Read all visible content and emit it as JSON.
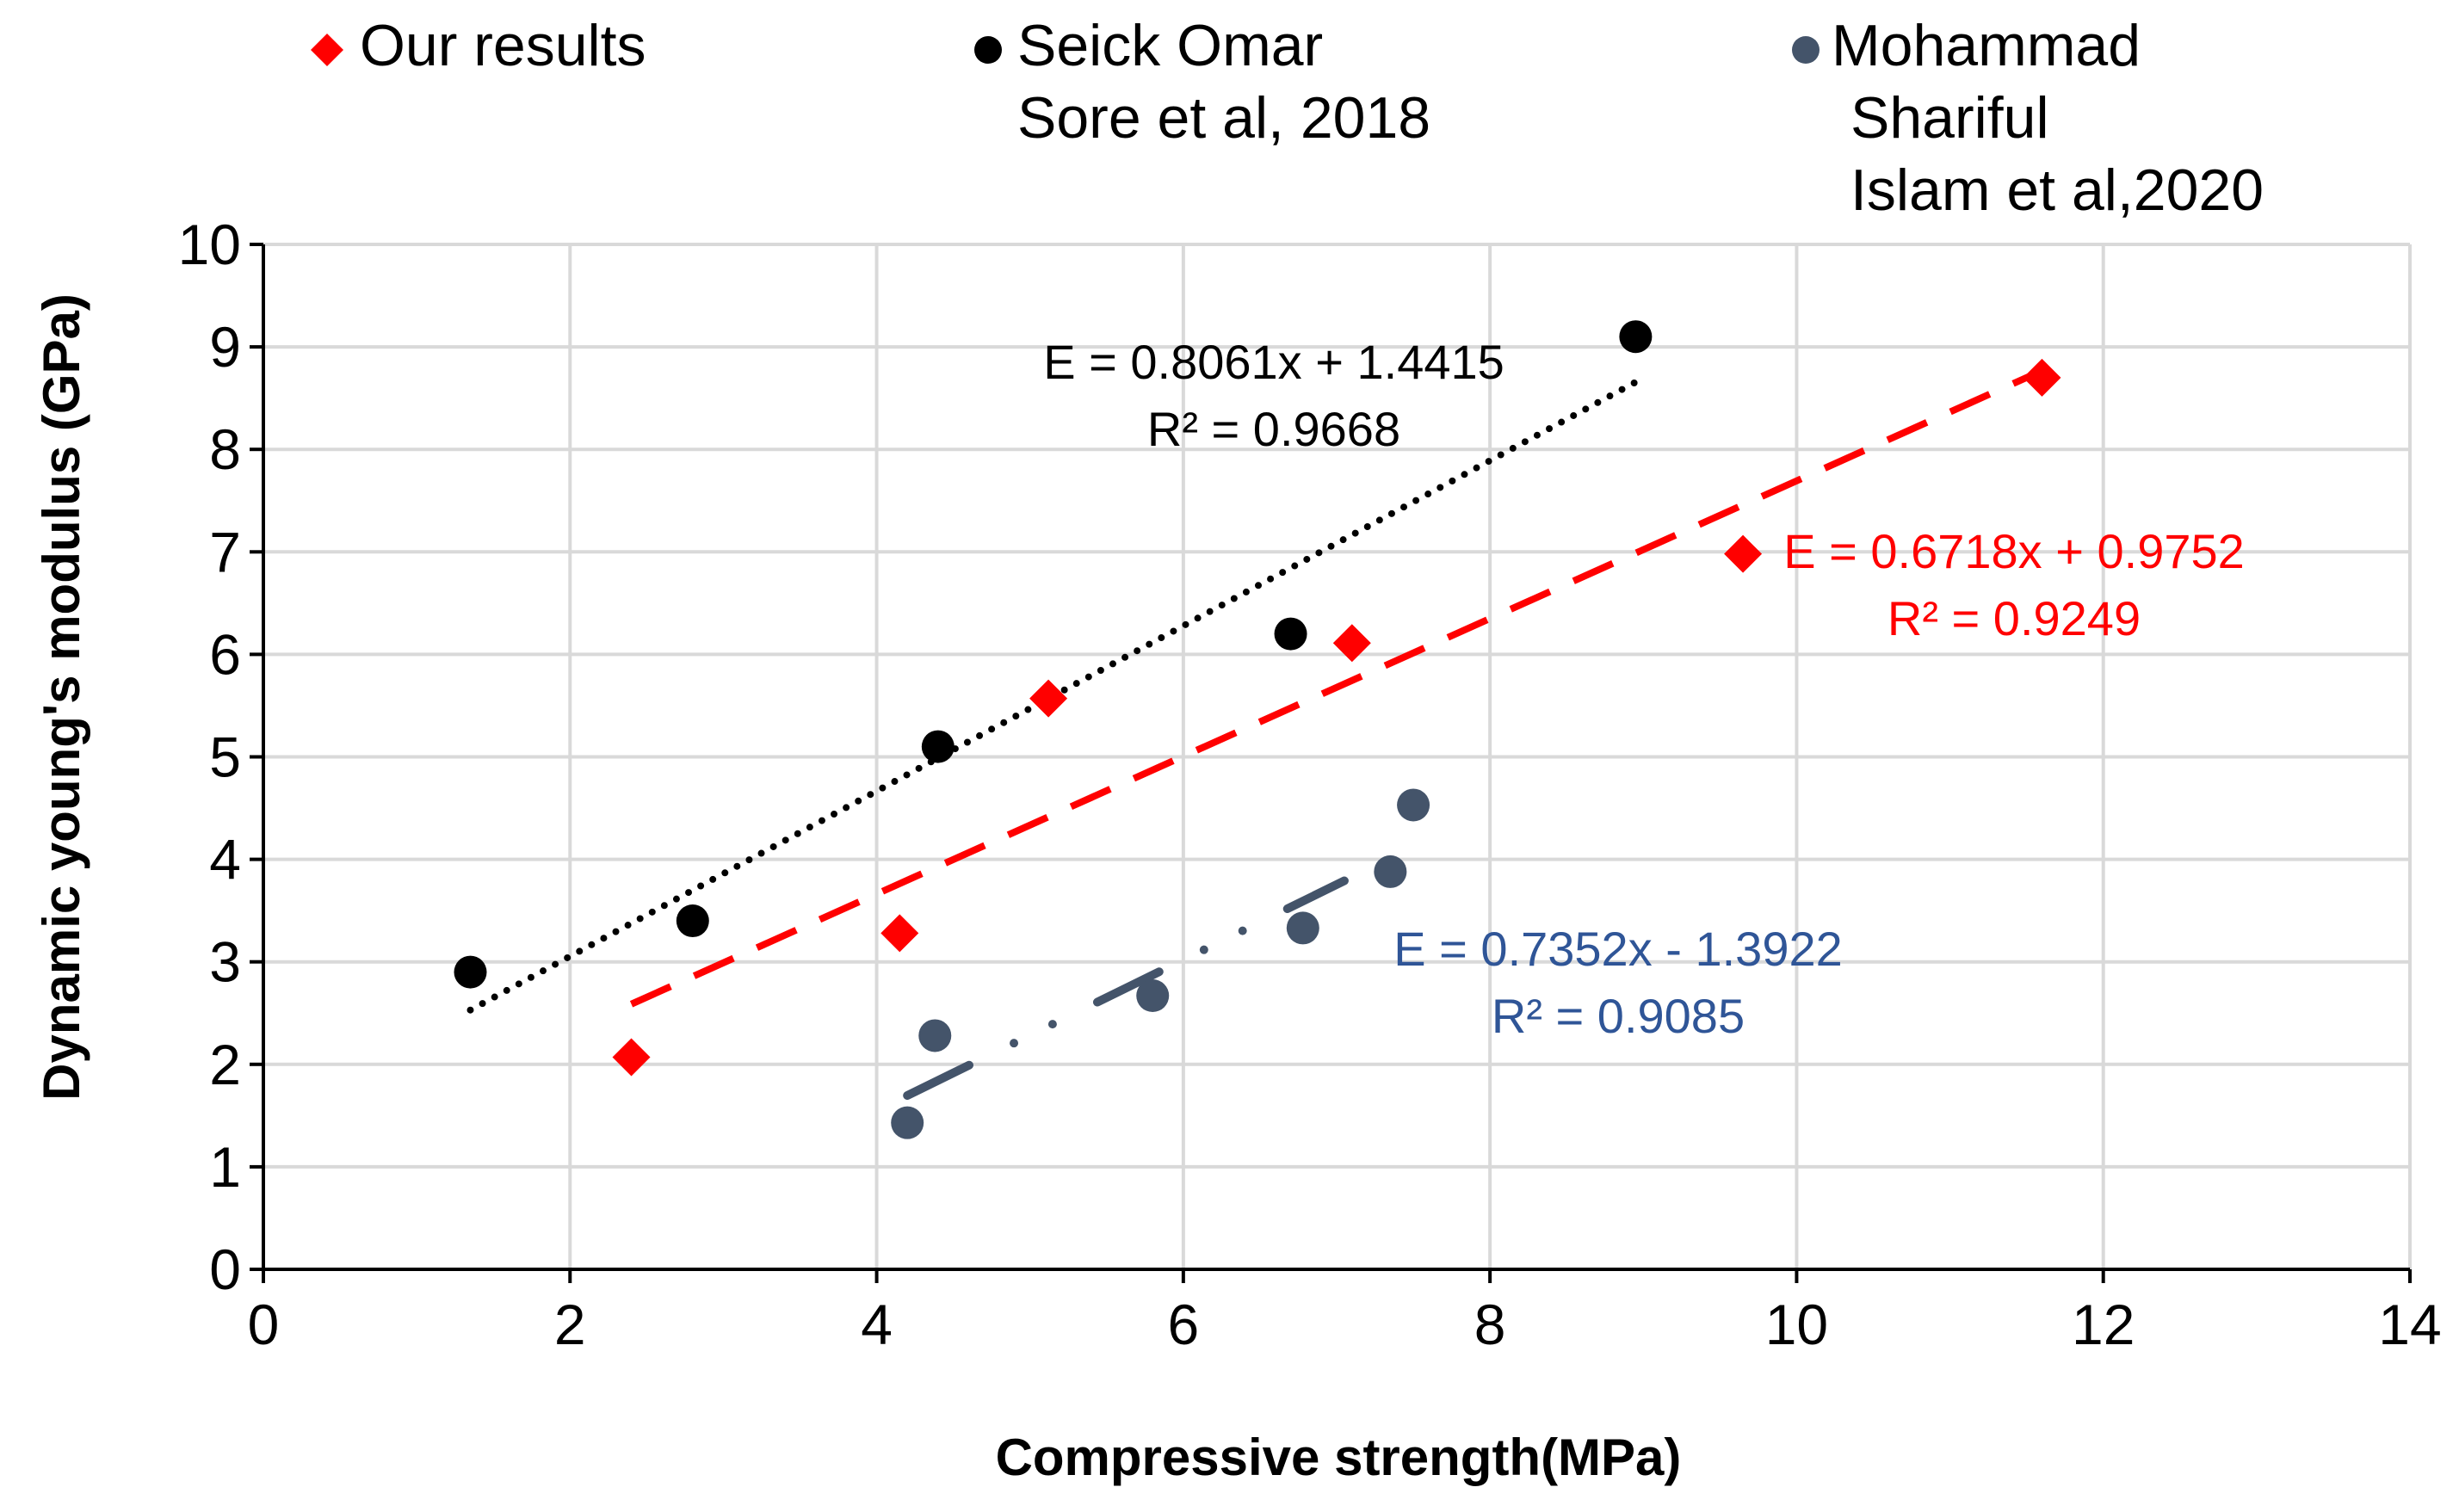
{
  "chart_data": {
    "type": "scatter",
    "title": "",
    "xlabel": "Compressive strength(MPa)",
    "ylabel": "Dynamic young's modulus (GPa)",
    "xlim": [
      0,
      14
    ],
    "ylim": [
      0,
      10
    ],
    "x_ticks": [
      "0",
      "2",
      "4",
      "6",
      "8",
      "10",
      "12",
      "14"
    ],
    "y_ticks": [
      "0",
      "1",
      "2",
      "3",
      "4",
      "5",
      "6",
      "7",
      "8",
      "9",
      "10"
    ],
    "grid": true,
    "legend_position": "top",
    "series": [
      {
        "key": "our-results",
        "legend_lines": [
          "Our results"
        ],
        "marker": "diamond",
        "color": "#ff0000",
        "line_style": "dashed",
        "points": [
          {
            "x": 2.4,
            "y": 2.07
          },
          {
            "x": 4.15,
            "y": 3.28
          },
          {
            "x": 5.12,
            "y": 5.57
          },
          {
            "x": 7.1,
            "y": 6.11
          },
          {
            "x": 9.65,
            "y": 6.98
          },
          {
            "x": 11.6,
            "y": 8.7
          }
        ],
        "trendline": {
          "slope": 0.6718,
          "intercept": 0.9752,
          "x_range": [
            2.4,
            11.6
          ]
        },
        "equation": "E = 0.6718x + 0.9752",
        "r_squared": "R² = 0.9249",
        "label_color": "#ff0000"
      },
      {
        "key": "sore-2018",
        "legend_lines": [
          "Seick Omar",
          "Sore et al, 2018"
        ],
        "marker": "circle",
        "color": "#000000",
        "line_style": "dotted",
        "points": [
          {
            "x": 1.35,
            "y": 2.9
          },
          {
            "x": 2.8,
            "y": 3.4
          },
          {
            "x": 4.4,
            "y": 5.1
          },
          {
            "x": 6.7,
            "y": 6.2
          },
          {
            "x": 8.95,
            "y": 9.1
          }
        ],
        "trendline": {
          "slope": 0.8061,
          "intercept": 1.4415,
          "x_range": [
            1.35,
            8.95
          ]
        },
        "equation": "E = 0.8061x + 1.4415",
        "r_squared": "R² = 0.9668",
        "label_color": "#000000"
      },
      {
        "key": "islam-2020",
        "legend_lines": [
          "Mohammad",
          "Shariful",
          "Islam et al,2020"
        ],
        "marker": "circle",
        "color": "#44546a",
        "line_style": "dash-dot",
        "points": [
          {
            "x": 4.2,
            "y": 1.43
          },
          {
            "x": 4.38,
            "y": 2.28
          },
          {
            "x": 5.8,
            "y": 2.67
          },
          {
            "x": 6.78,
            "y": 3.33
          },
          {
            "x": 7.35,
            "y": 3.88
          },
          {
            "x": 7.5,
            "y": 4.53
          }
        ],
        "trendline": {
          "slope": 0.7352,
          "intercept": -1.3922,
          "x_range": [
            4.2,
            7.05
          ]
        },
        "equation": "E = 0.7352x - 1.3922",
        "r_squared": "R² = 0.9085",
        "label_color": "#2f5597"
      }
    ]
  }
}
